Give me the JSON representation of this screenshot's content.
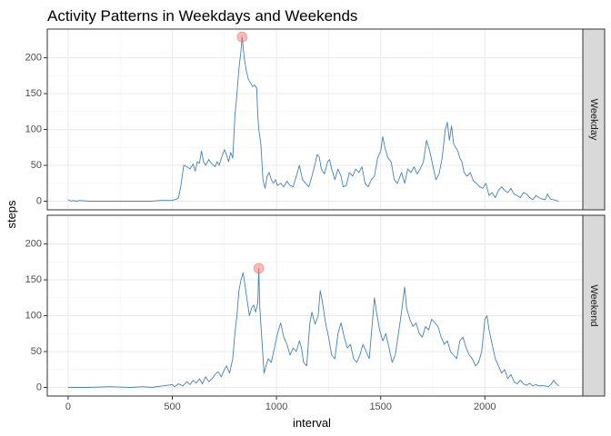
{
  "chart_data": {
    "type": "line",
    "title": "Activity Patterns in Weekdays and Weekends",
    "xlabel": "interval",
    "ylabel": "steps",
    "xlim": [
      -100,
      2470
    ],
    "ylim": [
      -12,
      240
    ],
    "x_ticks": [
      0,
      500,
      1000,
      1500,
      2000
    ],
    "x_tick_labels": [
      "0",
      "500",
      "1000",
      "1500",
      "2000"
    ],
    "y_ticks": [
      0,
      50,
      100,
      150,
      200
    ],
    "y_tick_labels": [
      "0",
      "50",
      "100",
      "150",
      "200"
    ],
    "grid": true,
    "line_color": "#4682b4",
    "marker_color": "#f8766d",
    "panels": [
      {
        "name": "Weekday",
        "peak": {
          "x": 835,
          "y": 229
        },
        "points": [
          [
            0,
            2
          ],
          [
            15,
            0
          ],
          [
            25,
            1
          ],
          [
            40,
            0
          ],
          [
            55,
            1
          ],
          [
            100,
            0
          ],
          [
            200,
            0
          ],
          [
            300,
            0
          ],
          [
            400,
            0
          ],
          [
            440,
            1
          ],
          [
            500,
            1
          ],
          [
            520,
            3
          ],
          [
            530,
            5
          ],
          [
            540,
            20
          ],
          [
            550,
            40
          ],
          [
            555,
            50
          ],
          [
            570,
            48
          ],
          [
            585,
            45
          ],
          [
            600,
            52
          ],
          [
            610,
            42
          ],
          [
            620,
            55
          ],
          [
            630,
            53
          ],
          [
            640,
            70
          ],
          [
            650,
            55
          ],
          [
            660,
            50
          ],
          [
            675,
            58
          ],
          [
            690,
            52
          ],
          [
            705,
            48
          ],
          [
            715,
            55
          ],
          [
            725,
            50
          ],
          [
            735,
            60
          ],
          [
            750,
            72
          ],
          [
            760,
            65
          ],
          [
            770,
            55
          ],
          [
            780,
            68
          ],
          [
            790,
            60
          ],
          [
            800,
            118
          ],
          [
            810,
            150
          ],
          [
            820,
            185
          ],
          [
            830,
            210
          ],
          [
            835,
            229
          ],
          [
            845,
            200
          ],
          [
            855,
            182
          ],
          [
            865,
            170
          ],
          [
            875,
            165
          ],
          [
            885,
            160
          ],
          [
            895,
            162
          ],
          [
            905,
            158
          ],
          [
            910,
            120
          ],
          [
            915,
            100
          ],
          [
            925,
            80
          ],
          [
            935,
            30
          ],
          [
            945,
            18
          ],
          [
            955,
            35
          ],
          [
            965,
            40
          ],
          [
            975,
            30
          ],
          [
            985,
            25
          ],
          [
            995,
            30
          ],
          [
            1005,
            22
          ],
          [
            1020,
            25
          ],
          [
            1035,
            20
          ],
          [
            1050,
            28
          ],
          [
            1065,
            22
          ],
          [
            1080,
            20
          ],
          [
            1095,
            35
          ],
          [
            1110,
            50
          ],
          [
            1125,
            30
          ],
          [
            1140,
            25
          ],
          [
            1155,
            20
          ],
          [
            1170,
            35
          ],
          [
            1185,
            52
          ],
          [
            1195,
            65
          ],
          [
            1205,
            62
          ],
          [
            1215,
            45
          ],
          [
            1230,
            38
          ],
          [
            1245,
            55
          ],
          [
            1255,
            58
          ],
          [
            1265,
            45
          ],
          [
            1280,
            30
          ],
          [
            1295,
            45
          ],
          [
            1310,
            35
          ],
          [
            1320,
            20
          ],
          [
            1335,
            22
          ],
          [
            1350,
            40
          ],
          [
            1365,
            35
          ],
          [
            1380,
            45
          ],
          [
            1395,
            40
          ],
          [
            1410,
            48
          ],
          [
            1425,
            25
          ],
          [
            1440,
            20
          ],
          [
            1455,
            30
          ],
          [
            1470,
            35
          ],
          [
            1485,
            60
          ],
          [
            1500,
            70
          ],
          [
            1510,
            90
          ],
          [
            1520,
            75
          ],
          [
            1535,
            60
          ],
          [
            1550,
            55
          ],
          [
            1565,
            30
          ],
          [
            1580,
            25
          ],
          [
            1600,
            40
          ],
          [
            1615,
            25
          ],
          [
            1630,
            45
          ],
          [
            1645,
            40
          ],
          [
            1660,
            48
          ],
          [
            1675,
            38
          ],
          [
            1690,
            45
          ],
          [
            1705,
            55
          ],
          [
            1720,
            85
          ],
          [
            1735,
            70
          ],
          [
            1750,
            50
          ],
          [
            1765,
            30
          ],
          [
            1780,
            38
          ],
          [
            1795,
            60
          ],
          [
            1810,
            100
          ],
          [
            1820,
            110
          ],
          [
            1830,
            85
          ],
          [
            1840,
            105
          ],
          [
            1850,
            80
          ],
          [
            1860,
            75
          ],
          [
            1870,
            70
          ],
          [
            1880,
            60
          ],
          [
            1890,
            55
          ],
          [
            1900,
            40
          ],
          [
            1915,
            35
          ],
          [
            1930,
            40
          ],
          [
            1945,
            28
          ],
          [
            1960,
            25
          ],
          [
            1975,
            20
          ],
          [
            1990,
            18
          ],
          [
            2005,
            25
          ],
          [
            2020,
            8
          ],
          [
            2035,
            12
          ],
          [
            2050,
            5
          ],
          [
            2065,
            15
          ],
          [
            2080,
            20
          ],
          [
            2095,
            15
          ],
          [
            2110,
            12
          ],
          [
            2125,
            18
          ],
          [
            2140,
            10
          ],
          [
            2155,
            8
          ],
          [
            2170,
            5
          ],
          [
            2185,
            12
          ],
          [
            2200,
            10
          ],
          [
            2215,
            5
          ],
          [
            2230,
            2
          ],
          [
            2245,
            8
          ],
          [
            2260,
            5
          ],
          [
            2275,
            3
          ],
          [
            2290,
            2
          ],
          [
            2300,
            10
          ],
          [
            2315,
            3
          ],
          [
            2330,
            2
          ],
          [
            2355,
            0
          ]
        ]
      },
      {
        "name": "Weekend",
        "peak": {
          "x": 915,
          "y": 166
        },
        "points": [
          [
            0,
            0
          ],
          [
            100,
            0
          ],
          [
            200,
            1
          ],
          [
            300,
            0
          ],
          [
            360,
            1
          ],
          [
            400,
            0
          ],
          [
            450,
            2
          ],
          [
            500,
            4
          ],
          [
            510,
            1
          ],
          [
            530,
            5
          ],
          [
            550,
            2
          ],
          [
            570,
            8
          ],
          [
            585,
            4
          ],
          [
            600,
            10
          ],
          [
            615,
            6
          ],
          [
            630,
            12
          ],
          [
            645,
            5
          ],
          [
            660,
            15
          ],
          [
            675,
            8
          ],
          [
            690,
            12
          ],
          [
            705,
            18
          ],
          [
            720,
            22
          ],
          [
            735,
            15
          ],
          [
            750,
            25
          ],
          [
            760,
            30
          ],
          [
            775,
            20
          ],
          [
            790,
            40
          ],
          [
            800,
            75
          ],
          [
            810,
            100
          ],
          [
            820,
            135
          ],
          [
            830,
            150
          ],
          [
            840,
            160
          ],
          [
            850,
            140
          ],
          [
            860,
            120
          ],
          [
            870,
            100
          ],
          [
            880,
            110
          ],
          [
            890,
            115
          ],
          [
            900,
            105
          ],
          [
            910,
            118
          ],
          [
            915,
            166
          ],
          [
            920,
            110
          ],
          [
            930,
            65
          ],
          [
            940,
            20
          ],
          [
            950,
            30
          ],
          [
            960,
            40
          ],
          [
            975,
            35
          ],
          [
            990,
            55
          ],
          [
            1005,
            75
          ],
          [
            1020,
            90
          ],
          [
            1035,
            70
          ],
          [
            1050,
            60
          ],
          [
            1065,
            45
          ],
          [
            1080,
            55
          ],
          [
            1095,
            50
          ],
          [
            1110,
            65
          ],
          [
            1120,
            55
          ],
          [
            1130,
            35
          ],
          [
            1145,
            30
          ],
          [
            1160,
            90
          ],
          [
            1170,
            105
          ],
          [
            1185,
            88
          ],
          [
            1200,
            100
          ],
          [
            1210,
            135
          ],
          [
            1220,
            120
          ],
          [
            1235,
            90
          ],
          [
            1250,
            70
          ],
          [
            1265,
            45
          ],
          [
            1280,
            40
          ],
          [
            1295,
            75
          ],
          [
            1310,
            90
          ],
          [
            1325,
            70
          ],
          [
            1340,
            55
          ],
          [
            1355,
            60
          ],
          [
            1370,
            40
          ],
          [
            1385,
            35
          ],
          [
            1400,
            45
          ],
          [
            1415,
            60
          ],
          [
            1430,
            50
          ],
          [
            1445,
            40
          ],
          [
            1460,
            90
          ],
          [
            1470,
            125
          ],
          [
            1480,
            105
          ],
          [
            1495,
            80
          ],
          [
            1510,
            65
          ],
          [
            1525,
            75
          ],
          [
            1540,
            55
          ],
          [
            1555,
            35
          ],
          [
            1570,
            45
          ],
          [
            1585,
            75
          ],
          [
            1600,
            105
          ],
          [
            1615,
            140
          ],
          [
            1625,
            110
          ],
          [
            1640,
            95
          ],
          [
            1655,
            85
          ],
          [
            1670,
            90
          ],
          [
            1685,
            75
          ],
          [
            1700,
            70
          ],
          [
            1715,
            85
          ],
          [
            1730,
            80
          ],
          [
            1745,
            95
          ],
          [
            1760,
            90
          ],
          [
            1775,
            85
          ],
          [
            1790,
            70
          ],
          [
            1805,
            60
          ],
          [
            1820,
            65
          ],
          [
            1835,
            50
          ],
          [
            1850,
            45
          ],
          [
            1865,
            40
          ],
          [
            1880,
            65
          ],
          [
            1895,
            70
          ],
          [
            1910,
            55
          ],
          [
            1925,
            45
          ],
          [
            1940,
            40
          ],
          [
            1955,
            30
          ],
          [
            1970,
            35
          ],
          [
            1985,
            50
          ],
          [
            2000,
            95
          ],
          [
            2010,
            100
          ],
          [
            2020,
            80
          ],
          [
            2035,
            60
          ],
          [
            2050,
            40
          ],
          [
            2065,
            30
          ],
          [
            2080,
            20
          ],
          [
            2095,
            25
          ],
          [
            2110,
            12
          ],
          [
            2125,
            18
          ],
          [
            2140,
            8
          ],
          [
            2155,
            5
          ],
          [
            2170,
            10
          ],
          [
            2185,
            5
          ],
          [
            2200,
            3
          ],
          [
            2215,
            6
          ],
          [
            2230,
            2
          ],
          [
            2245,
            4
          ],
          [
            2260,
            2
          ],
          [
            2275,
            3
          ],
          [
            2290,
            2
          ],
          [
            2305,
            1
          ],
          [
            2320,
            5
          ],
          [
            2330,
            10
          ],
          [
            2340,
            6
          ],
          [
            2355,
            2
          ]
        ]
      }
    ]
  }
}
